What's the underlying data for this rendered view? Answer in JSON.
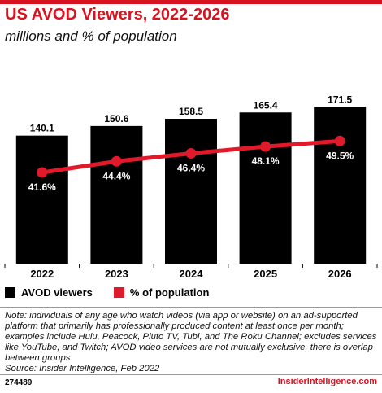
{
  "header": {
    "title": "US AVOD Viewers, 2022-2026",
    "subtitle": "millions and % of population"
  },
  "colors": {
    "accent": "#d9121f",
    "bar": "#000000",
    "line": "#e0192b"
  },
  "legend": {
    "items": [
      {
        "label": "AVOD viewers",
        "color": "#000000"
      },
      {
        "label": "% of population",
        "color": "#e0192b"
      }
    ]
  },
  "chart_data": {
    "type": "bar",
    "categories": [
      "2022",
      "2023",
      "2024",
      "2025",
      "2026"
    ],
    "series": [
      {
        "name": "AVOD viewers",
        "type": "bar",
        "values": [
          140.1,
          150.6,
          158.5,
          165.4,
          171.5
        ],
        "labels": [
          "140.1",
          "150.6",
          "158.5",
          "165.4",
          "171.5"
        ]
      },
      {
        "name": "% of population",
        "type": "line",
        "values": [
          41.6,
          44.4,
          46.4,
          48.1,
          49.5
        ],
        "labels": [
          "41.6%",
          "44.4%",
          "46.4%",
          "48.1%",
          "49.5%"
        ]
      }
    ],
    "grid": false,
    "legend_position": "bottom-left"
  },
  "footer": {
    "note": "Note: individuals of any age who watch videos (via app or website) on an ad-supported platform that primarily has professionally produced content at least once per month; examples include Hulu, Peacock, Pluto TV, Tubi, and The Roku Channel; excludes services like YouTube, and Twitch; AVOD video services are not mutually exclusive, there is overlap between groups",
    "source": "Source: Insider Intelligence, Feb 2022",
    "chart_id": "274489",
    "brand": "InsiderIntelligence.com"
  }
}
